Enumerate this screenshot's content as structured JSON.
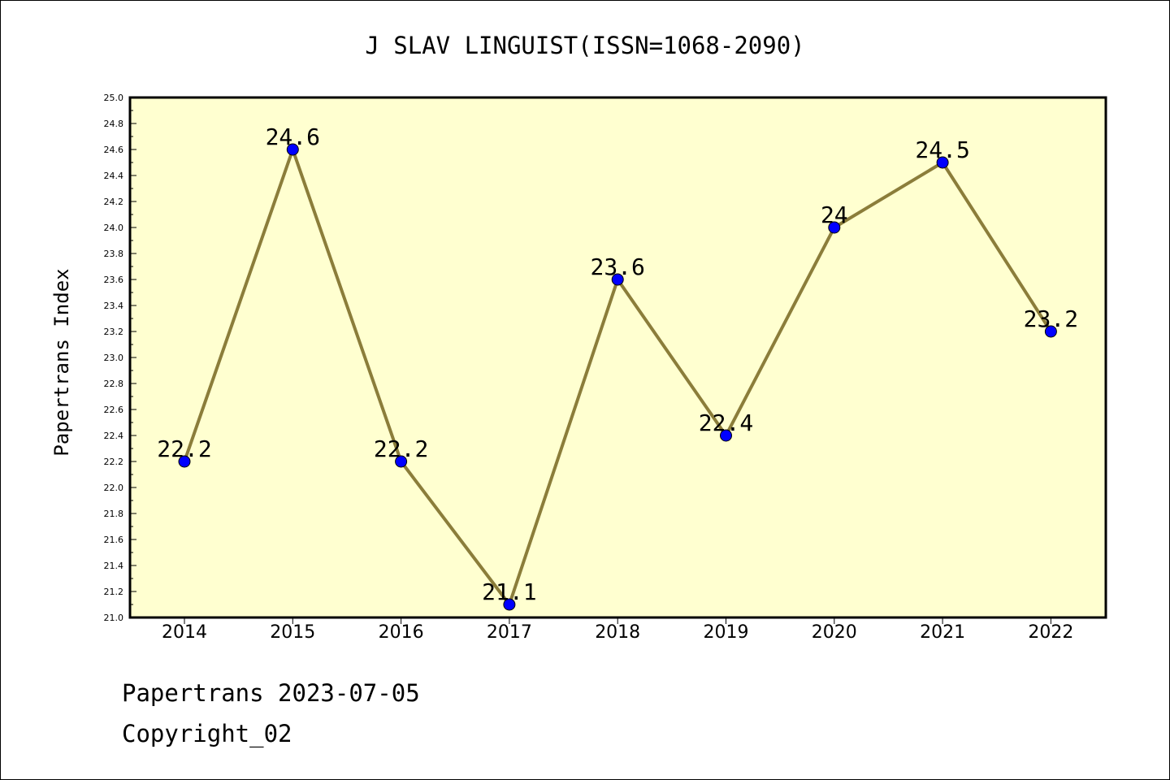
{
  "chart_data": {
    "type": "line",
    "title": "J SLAV LINGUIST(ISSN=1068-2090)",
    "xlabel": "",
    "ylabel": "Papertrans Index",
    "categories": [
      "2014",
      "2015",
      "2016",
      "2017",
      "2018",
      "2019",
      "2020",
      "2021",
      "2022"
    ],
    "values": [
      22.2,
      24.6,
      22.2,
      21.1,
      23.6,
      22.4,
      24.0,
      24.5,
      23.2
    ],
    "data_labels": [
      "22.2",
      "24.6",
      "22.2",
      "21.1",
      "23.6",
      "22.4",
      "24",
      "24.5",
      "23.2"
    ],
    "ylim": [
      21.0,
      25.0
    ],
    "y_ticks": [
      "21.0",
      "21.2",
      "21.4",
      "21.6",
      "21.8",
      "22.0",
      "22.2",
      "22.4",
      "22.6",
      "22.8",
      "23.0",
      "23.2",
      "23.4",
      "23.6",
      "23.8",
      "24.0",
      "24.2",
      "24.4",
      "24.6",
      "24.8",
      "25.0"
    ],
    "grid": false,
    "colors": {
      "plot_background": "#ffffd0",
      "line": "#8b7d3a",
      "marker": "#0000ff"
    }
  },
  "footer": {
    "line1": "Papertrans 2023-07-05",
    "line2": "Copyright_02"
  }
}
